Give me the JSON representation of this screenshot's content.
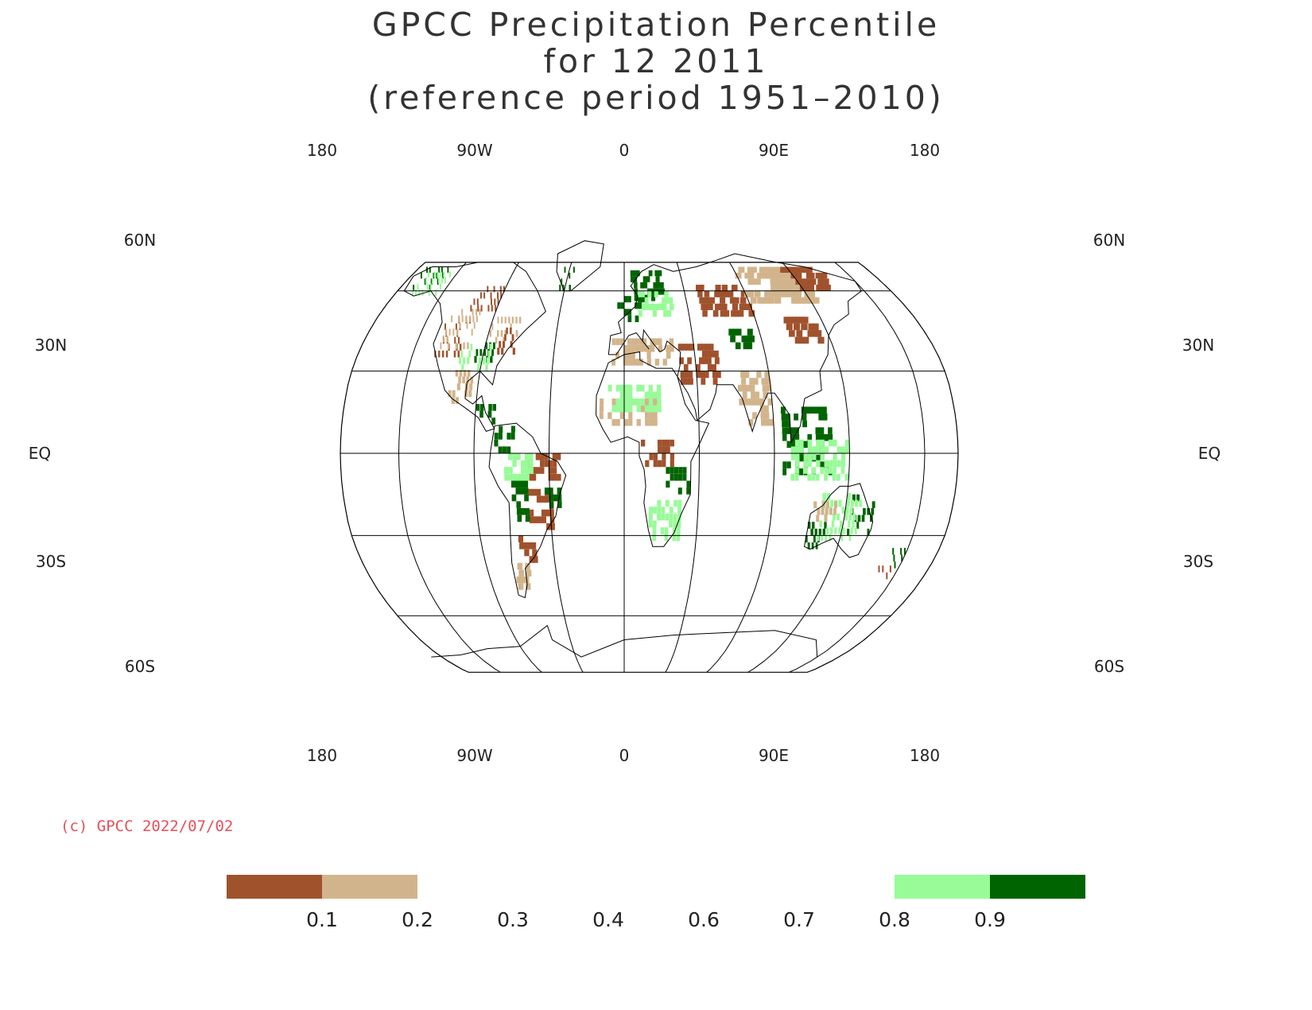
{
  "title": {
    "line1": "GPCC Precipitation Percentile",
    "line2": "for 12 2011",
    "line3": "(reference period 1951–2010)"
  },
  "map": {
    "projection": "robinson",
    "lon_labels_top": [
      "180",
      "90W",
      "0",
      "90E",
      "180"
    ],
    "lon_labels_bottom": [
      "180",
      "90W",
      "0",
      "90E",
      "180"
    ],
    "lat_labels": [
      "60N",
      "30N",
      "EQ",
      "30S",
      "60S"
    ],
    "graticule_lon_step_deg": 45,
    "graticule_lats_deg": [
      60,
      30,
      0,
      -30,
      -60
    ]
  },
  "credit": "(c) GPCC 2022/07/02",
  "legend": {
    "classes": [
      {
        "range": "<0.1",
        "color": "#a0522d"
      },
      {
        "range": "0.1-0.2",
        "color": "#d2b48c"
      },
      {
        "range": "0.2-0.8",
        "color": "#ffffff"
      },
      {
        "range": "0.8-0.9",
        "color": "#98fb98"
      },
      {
        "range": ">0.9",
        "color": "#006400"
      }
    ],
    "tick_labels": [
      "0.1",
      "0.2",
      "0.3",
      "0.4",
      "0.6",
      "0.7",
      "0.8",
      "0.9"
    ]
  },
  "regions": [
    {
      "name": "alaska",
      "cat": 4,
      "lon": [
        -165,
        -145
      ],
      "lat": [
        60,
        70
      ]
    },
    {
      "name": "alaska-light",
      "cat": 3,
      "lon": [
        -160,
        -140
      ],
      "lat": [
        58,
        66
      ]
    },
    {
      "name": "western-us-dry",
      "cat": 0,
      "lon": [
        -122,
        -105
      ],
      "lat": [
        35,
        48
      ]
    },
    {
      "name": "western-us-tan",
      "cat": 1,
      "lon": [
        -120,
        -100
      ],
      "lat": [
        38,
        52
      ]
    },
    {
      "name": "canada-dry",
      "cat": 0,
      "lon": [
        -110,
        -90
      ],
      "lat": [
        52,
        62
      ]
    },
    {
      "name": "central-us-wet",
      "cat": 4,
      "lon": [
        -98,
        -85
      ],
      "lat": [
        33,
        40
      ]
    },
    {
      "name": "central-us-light",
      "cat": 3,
      "lon": [
        -105,
        -85
      ],
      "lat": [
        30,
        38
      ]
    },
    {
      "name": "great-lakes-tan",
      "cat": 1,
      "lon": [
        -90,
        -72
      ],
      "lat": [
        40,
        50
      ]
    },
    {
      "name": "east-coast-dry",
      "cat": 0,
      "lon": [
        -82,
        -70
      ],
      "lat": [
        36,
        45
      ]
    },
    {
      "name": "mexico-tan",
      "cat": 1,
      "lon": [
        -108,
        -95
      ],
      "lat": [
        18,
        30
      ]
    },
    {
      "name": "central-america-wet",
      "cat": 4,
      "lon": [
        -90,
        -78
      ],
      "lat": [
        8,
        16
      ]
    },
    {
      "name": "colombia-wet",
      "cat": 4,
      "lon": [
        -78,
        -66
      ],
      "lat": [
        0,
        10
      ]
    },
    {
      "name": "brazil-ne-dry",
      "cat": 0,
      "lon": [
        -58,
        -38
      ],
      "lat": [
        -10,
        0
      ]
    },
    {
      "name": "amazon-light",
      "cat": 3,
      "lon": [
        -72,
        -55
      ],
      "lat": [
        -10,
        0
      ]
    },
    {
      "name": "brazil-central-dry",
      "cat": 0,
      "lon": [
        -58,
        -45
      ],
      "lat": [
        -28,
        -15
      ]
    },
    {
      "name": "brazil-east-wet",
      "cat": 4,
      "lon": [
        -48,
        -38
      ],
      "lat": [
        -20,
        -10
      ]
    },
    {
      "name": "bolivia-wet",
      "cat": 4,
      "lon": [
        -68,
        -60
      ],
      "lat": [
        -25,
        -12
      ]
    },
    {
      "name": "argentina-dry",
      "cat": 0,
      "lon": [
        -66,
        -58
      ],
      "lat": [
        -40,
        -30
      ]
    },
    {
      "name": "patagonia-tan",
      "cat": 1,
      "lon": [
        -72,
        -64
      ],
      "lat": [
        -50,
        -40
      ]
    },
    {
      "name": "greenland-south-wet",
      "cat": 4,
      "lon": [
        -50,
        -40
      ],
      "lat": [
        60,
        68
      ]
    },
    {
      "name": "scandinavia-wet",
      "cat": 4,
      "lon": [
        5,
        30
      ],
      "lat": [
        56,
        68
      ]
    },
    {
      "name": "western-europe-wet",
      "cat": 4,
      "lon": [
        -5,
        15
      ],
      "lat": [
        48,
        56
      ]
    },
    {
      "name": "europe-light",
      "cat": 3,
      "lon": [
        10,
        35
      ],
      "lat": [
        50,
        60
      ]
    },
    {
      "name": "mediterranean-tan",
      "cat": 1,
      "lon": [
        -8,
        30
      ],
      "lat": [
        32,
        42
      ]
    },
    {
      "name": "middle-east-dry",
      "cat": 0,
      "lon": [
        35,
        60
      ],
      "lat": [
        25,
        40
      ]
    },
    {
      "name": "russia-dry",
      "cat": 0,
      "lon": [
        55,
        90
      ],
      "lat": [
        50,
        62
      ]
    },
    {
      "name": "siberia-tan",
      "cat": 1,
      "lon": [
        90,
        140
      ],
      "lat": [
        55,
        68
      ]
    },
    {
      "name": "siberia-east-dry",
      "cat": 0,
      "lon": [
        130,
        160
      ],
      "lat": [
        60,
        68
      ]
    },
    {
      "name": "mongolia-dry",
      "cat": 0,
      "lon": [
        110,
        130
      ],
      "lat": [
        40,
        50
      ]
    },
    {
      "name": "central-asia-wet",
      "cat": 4,
      "lon": [
        70,
        85
      ],
      "lat": [
        38,
        45
      ]
    },
    {
      "name": "sahel-tan",
      "cat": 1,
      "lon": [
        -15,
        20
      ],
      "lat": [
        10,
        20
      ]
    },
    {
      "name": "west-africa-light",
      "cat": 3,
      "lon": [
        -10,
        25
      ],
      "lat": [
        15,
        25
      ]
    },
    {
      "name": "congo-dry",
      "cat": 0,
      "lon": [
        10,
        30
      ],
      "lat": [
        -5,
        5
      ]
    },
    {
      "name": "east-africa-wet",
      "cat": 4,
      "lon": [
        25,
        40
      ],
      "lat": [
        -15,
        -5
      ]
    },
    {
      "name": "southern-africa-light",
      "cat": 3,
      "lon": [
        15,
        35
      ],
      "lat": [
        -32,
        -18
      ]
    },
    {
      "name": "india-tan",
      "cat": 1,
      "lon": [
        70,
        88
      ],
      "lat": [
        10,
        28
      ]
    },
    {
      "name": "se-asia-wet",
      "cat": 4,
      "lon": [
        95,
        125
      ],
      "lat": [
        -8,
        15
      ]
    },
    {
      "name": "indonesia-light",
      "cat": 3,
      "lon": [
        100,
        135
      ],
      "lat": [
        -10,
        5
      ]
    },
    {
      "name": "australia-west-wet",
      "cat": 4,
      "lon": [
        113,
        125
      ],
      "lat": [
        -35,
        -25
      ]
    },
    {
      "name": "australia-east-wet",
      "cat": 4,
      "lon": [
        138,
        152
      ],
      "lat": [
        -30,
        -15
      ]
    },
    {
      "name": "australia-light",
      "cat": 3,
      "lon": [
        120,
        145
      ],
      "lat": [
        -32,
        -15
      ]
    },
    {
      "name": "australia-tan",
      "cat": 1,
      "lon": [
        115,
        130
      ],
      "lat": [
        -25,
        -18
      ]
    },
    {
      "name": "new-zealand-wet",
      "cat": 4,
      "lon": [
        170,
        178
      ],
      "lat": [
        -42,
        -35
      ]
    },
    {
      "name": "new-zealand-dry",
      "cat": 0,
      "lon": [
        166,
        174
      ],
      "lat": [
        -46,
        -42
      ]
    }
  ]
}
